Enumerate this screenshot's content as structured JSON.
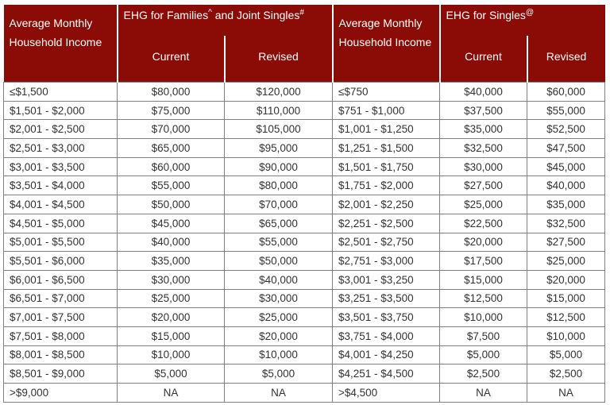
{
  "header": {
    "income_line1": "Average Monthly",
    "income_line2": "Household Income",
    "families_text1": "EHG for Families",
    "families_sup1": "^",
    "families_text2": " and Joint Singles",
    "families_sup2": "#",
    "singles_text": "EHG for Singles",
    "singles_sup": "@",
    "current": "Current",
    "revised": "Revised"
  },
  "colors": {
    "header_bg": "#8B0C06",
    "header_text": "#FFFFFF",
    "grid_border": "#808080",
    "body_text": "#333333"
  },
  "chart_data": {
    "type": "table",
    "title": "EHG income tiers and grant amounts",
    "column_groups": [
      {
        "label": "Average Monthly Household Income",
        "span": 1
      },
      {
        "label": "EHG for Families^ and Joint Singles#",
        "span": 2
      },
      {
        "label": "Average Monthly Household Income",
        "span": 1
      },
      {
        "label": "EHG for Singles@",
        "span": 2
      }
    ],
    "sub_columns": [
      "Current",
      "Revised",
      "Current",
      "Revised"
    ],
    "rows": [
      [
        "≤$1,500",
        "$80,000",
        "$120,000",
        "≤$750",
        "$40,000",
        "$60,000"
      ],
      [
        "$1,501 - $2,000",
        "$75,000",
        "$110,000",
        "$751 - $1,000",
        "$37,500",
        "$55,000"
      ],
      [
        "$2,001 - $2,500",
        "$70,000",
        "$105,000",
        "$1,001 - $1,250",
        "$35,000",
        "$52,500"
      ],
      [
        "$2,501 - $3,000",
        "$65,000",
        "$95,000",
        "$1,251 - $1,500",
        "$32,500",
        "$47,500"
      ],
      [
        "$3,001 - $3,500",
        "$60,000",
        "$90,000",
        "$1,501 - $1,750",
        "$30,000",
        "$45,000"
      ],
      [
        "$3,501 - $4,000",
        "$55,000",
        "$80,000",
        "$1,751 - $2,000",
        "$27,500",
        "$40,000"
      ],
      [
        "$4,001 - $4,500",
        "$50,000",
        "$70,000",
        "$2,001 - $2,250",
        "$25,000",
        "$35,000"
      ],
      [
        "$4,501 - $5,000",
        "$45,000",
        "$65,000",
        "$2,251 - $2,500",
        "$22,500",
        "$32,500"
      ],
      [
        "$5,001 - $5,500",
        "$40,000",
        "$55,000",
        "$2,501 - $2,750",
        "$20,000",
        "$27,500"
      ],
      [
        "$5,501 - $6,000",
        "$35,000",
        "$50,000",
        "$2,751 - $3,000",
        "$17,500",
        "$25,000"
      ],
      [
        "$6,001 - $6,500",
        "$30,000",
        "$40,000",
        "$3,001 - $3,250",
        "$15,000",
        "$20,000"
      ],
      [
        "$6,501 - $7,000",
        "$25,000",
        "$30,000",
        "$3,251 - $3,500",
        "$12,500",
        "$15,000"
      ],
      [
        "$7,001 - $7,500",
        "$20,000",
        "$25,000",
        "$3,501 - $3,750",
        "$10,000",
        "$12,500"
      ],
      [
        "$7,501 - $8,000",
        "$15,000",
        "$20,000",
        "$3,751 - $4,000",
        "$7,500",
        "$10,000"
      ],
      [
        "$8,001 - $8,500",
        "$10,000",
        "$10,000",
        "$4,001 - $4,250",
        "$5,000",
        "$5,000"
      ],
      [
        "$8,501 - $9,000",
        "$5,000",
        "$5,000",
        "$4,251 - $4,500",
        "$2,500",
        "$2,500"
      ],
      [
        ">$9,000",
        "NA",
        "NA",
        ">$4,500",
        "NA",
        "NA"
      ]
    ]
  }
}
